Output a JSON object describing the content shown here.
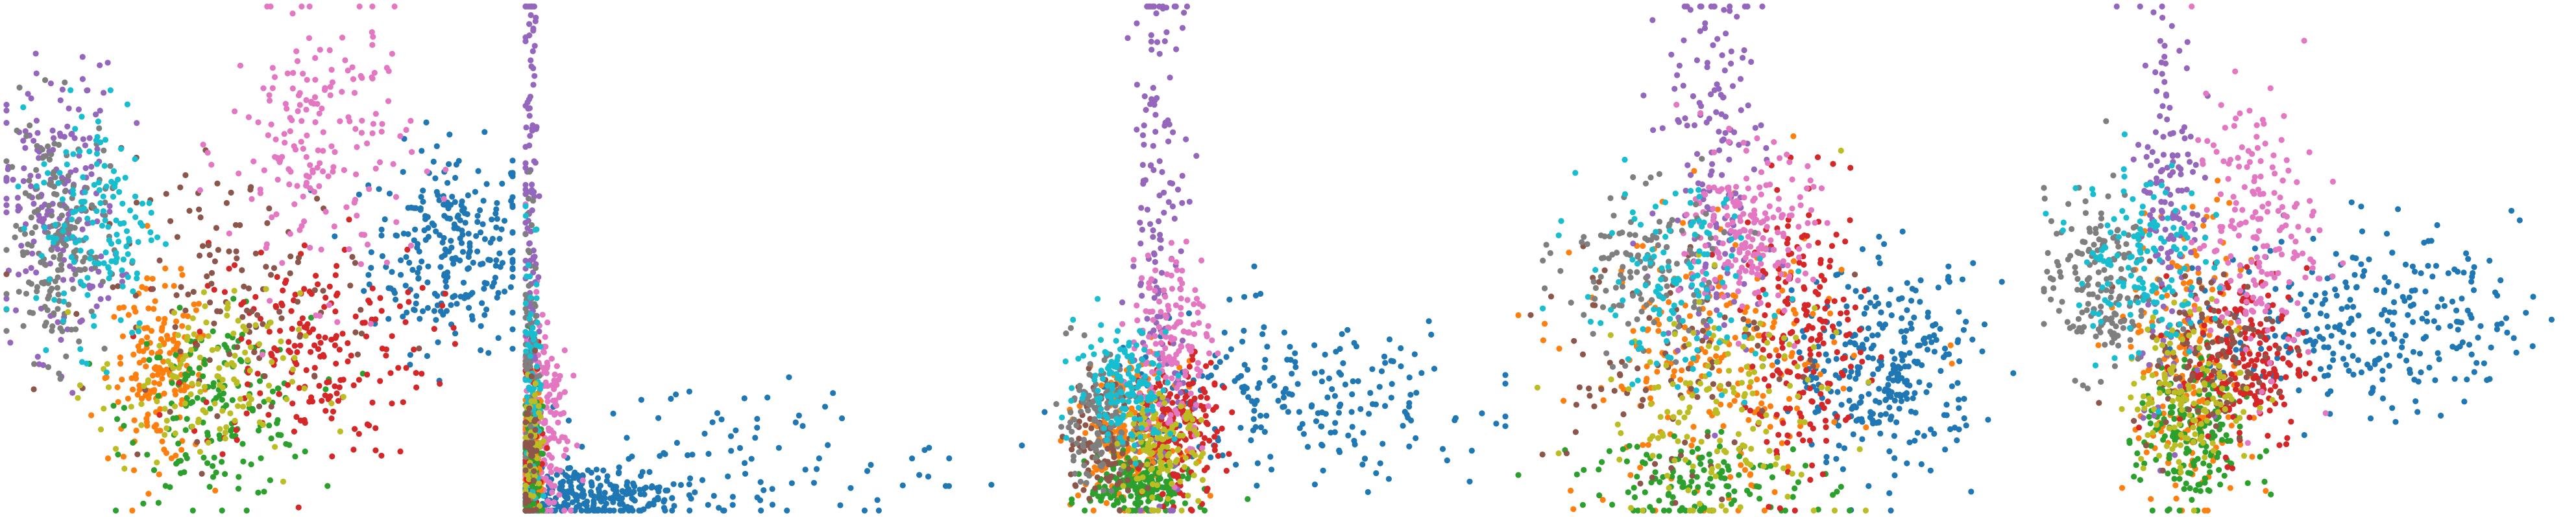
{
  "figure": {
    "type": "scatter-grid",
    "panel_count": 5
  },
  "colors": {
    "c0": "#1f77b4",
    "c1": "#ff7f0e",
    "c2": "#2ca02c",
    "c3": "#d62728",
    "c4": "#9467bd",
    "c5": "#8c564b",
    "c6": "#e377c2",
    "c7": "#7f7f7f",
    "c8": "#bcbd22",
    "c9": "#17becf"
  },
  "chart_data": [
    {
      "type": "scatter",
      "title": "",
      "xlabel": "",
      "ylabel": "",
      "axes_visible": false,
      "grid": false,
      "legend": "none",
      "xlim": [
        0,
        100
      ],
      "ylim": [
        0,
        100
      ],
      "clusters": [
        {
          "color": "c0",
          "cx": 88,
          "cy": 52,
          "sx": 8,
          "sy": 10,
          "n": 260
        },
        {
          "color": "c1",
          "cx": 30,
          "cy": 27,
          "sx": 5,
          "sy": 9,
          "n": 170
        },
        {
          "color": "c2",
          "cx": 42,
          "cy": 20,
          "sx": 9,
          "sy": 9,
          "n": 170
        },
        {
          "color": "c3",
          "cx": 60,
          "cy": 32,
          "sx": 12,
          "sy": 11,
          "n": 200
        },
        {
          "color": "c4",
          "cx": 10,
          "cy": 60,
          "sx": 6,
          "sy": 14,
          "n": 190
        },
        {
          "color": "c5",
          "cx": 45,
          "cy": 45,
          "sx": 14,
          "sy": 12,
          "n": 120
        },
        {
          "color": "c6",
          "cx": 62,
          "cy": 72,
          "sx": 9,
          "sy": 14,
          "n": 190
        },
        {
          "color": "c7",
          "cx": 10,
          "cy": 54,
          "sx": 5,
          "sy": 12,
          "n": 180
        },
        {
          "color": "c8",
          "cx": 38,
          "cy": 25,
          "sx": 10,
          "sy": 9,
          "n": 130
        },
        {
          "color": "c9",
          "cx": 18,
          "cy": 58,
          "sx": 6,
          "sy": 12,
          "n": 150
        }
      ]
    },
    {
      "type": "scatter",
      "title": "",
      "xlabel": "",
      "ylabel": "",
      "axes_visible": false,
      "grid": false,
      "legend": "none",
      "xlim": [
        0,
        100
      ],
      "ylim": [
        0,
        100
      ],
      "clusters": [
        {
          "color": "c0",
          "cx": 14,
          "cy": 3,
          "sx": 10,
          "sy": 3,
          "n": 260
        },
        {
          "color": "c0",
          "cx": 45,
          "cy": 10,
          "sx": 22,
          "sy": 8,
          "n": 90
        },
        {
          "color": "c6",
          "cx": 4,
          "cy": 18,
          "sx": 2.5,
          "sy": 12,
          "n": 150
        },
        {
          "color": "c4",
          "cx": 1,
          "cy": 60,
          "sx": 0.8,
          "sy": 30,
          "n": 120
        },
        {
          "color": "c1",
          "cx": 1.5,
          "cy": 10,
          "sx": 1.2,
          "sy": 8,
          "n": 80
        },
        {
          "color": "c3",
          "cx": 1.5,
          "cy": 15,
          "sx": 1.2,
          "sy": 10,
          "n": 70
        },
        {
          "color": "c2",
          "cx": 1.2,
          "cy": 12,
          "sx": 1,
          "sy": 10,
          "n": 60
        },
        {
          "color": "c7",
          "cx": 1,
          "cy": 30,
          "sx": 0.8,
          "sy": 18,
          "n": 70
        },
        {
          "color": "c9",
          "cx": 1.5,
          "cy": 25,
          "sx": 1,
          "sy": 16,
          "n": 70
        },
        {
          "color": "c8",
          "cx": 1.5,
          "cy": 12,
          "sx": 1,
          "sy": 8,
          "n": 50
        },
        {
          "color": "c5",
          "cx": 1.2,
          "cy": 10,
          "sx": 1,
          "sy": 8,
          "n": 40
        }
      ]
    },
    {
      "type": "scatter",
      "title": "",
      "xlabel": "",
      "ylabel": "",
      "axes_visible": false,
      "grid": false,
      "legend": "none",
      "xlim": [
        0,
        100
      ],
      "ylim": [
        0,
        100
      ],
      "clusters": [
        {
          "color": "c0",
          "cx": 58,
          "cy": 22,
          "sx": 20,
          "sy": 8,
          "n": 220
        },
        {
          "color": "c1",
          "cx": 25,
          "cy": 15,
          "sx": 5,
          "sy": 7,
          "n": 200
        },
        {
          "color": "c2",
          "cx": 27,
          "cy": 5,
          "sx": 5,
          "sy": 3,
          "n": 200
        },
        {
          "color": "c3",
          "cx": 35,
          "cy": 16,
          "sx": 4,
          "sy": 7,
          "n": 170
        },
        {
          "color": "c4",
          "cx": 31,
          "cy": 60,
          "sx": 3,
          "sy": 28,
          "n": 150
        },
        {
          "color": "c5",
          "cx": 20,
          "cy": 14,
          "sx": 4,
          "sy": 6,
          "n": 100
        },
        {
          "color": "c6",
          "cx": 33,
          "cy": 34,
          "sx": 4,
          "sy": 10,
          "n": 150
        },
        {
          "color": "c7",
          "cx": 18,
          "cy": 18,
          "sx": 4,
          "sy": 6,
          "n": 130
        },
        {
          "color": "c8",
          "cx": 31,
          "cy": 12,
          "sx": 4,
          "sy": 5,
          "n": 120
        },
        {
          "color": "c9",
          "cx": 24,
          "cy": 25,
          "sx": 5,
          "sy": 6,
          "n": 150
        }
      ]
    },
    {
      "type": "scatter",
      "title": "",
      "xlabel": "",
      "ylabel": "",
      "axes_visible": false,
      "grid": false,
      "legend": "none",
      "xlim": [
        0,
        100
      ],
      "ylim": [
        0,
        100
      ],
      "clusters": [
        {
          "color": "c0",
          "cx": 72,
          "cy": 28,
          "sx": 9,
          "sy": 10,
          "n": 300
        },
        {
          "color": "c1",
          "cx": 38,
          "cy": 28,
          "sx": 13,
          "sy": 14,
          "n": 230
        },
        {
          "color": "c2",
          "cx": 36,
          "cy": 6,
          "sx": 12,
          "sy": 4,
          "n": 130
        },
        {
          "color": "c3",
          "cx": 56,
          "cy": 34,
          "sx": 6,
          "sy": 14,
          "n": 190
        },
        {
          "color": "c4",
          "cx": 38,
          "cy": 72,
          "sx": 5,
          "sy": 20,
          "n": 160
        },
        {
          "color": "c5",
          "cx": 26,
          "cy": 30,
          "sx": 12,
          "sy": 14,
          "n": 90
        },
        {
          "color": "c6",
          "cx": 45,
          "cy": 55,
          "sx": 6,
          "sy": 8,
          "n": 200
        },
        {
          "color": "c7",
          "cx": 24,
          "cy": 48,
          "sx": 8,
          "sy": 8,
          "n": 130
        },
        {
          "color": "c8",
          "cx": 40,
          "cy": 20,
          "sx": 12,
          "sy": 12,
          "n": 150
        },
        {
          "color": "c9",
          "cx": 30,
          "cy": 44,
          "sx": 9,
          "sy": 10,
          "n": 130
        }
      ]
    },
    {
      "type": "scatter",
      "title": "",
      "xlabel": "",
      "ylabel": "",
      "axes_visible": false,
      "grid": false,
      "legend": "none",
      "xlim": [
        0,
        100
      ],
      "ylim": [
        0,
        100
      ],
      "clusters": [
        {
          "color": "c0",
          "cx": 62,
          "cy": 38,
          "sx": 14,
          "sy": 9,
          "n": 280
        },
        {
          "color": "c1",
          "cx": 28,
          "cy": 30,
          "sx": 6,
          "sy": 15,
          "n": 200
        },
        {
          "color": "c2",
          "cx": 28,
          "cy": 14,
          "sx": 5,
          "sy": 8,
          "n": 180
        },
        {
          "color": "c3",
          "cx": 38,
          "cy": 30,
          "sx": 6,
          "sy": 9,
          "n": 200
        },
        {
          "color": "c4",
          "cx": 24,
          "cy": 62,
          "sx": 3,
          "sy": 20,
          "n": 150
        },
        {
          "color": "c5",
          "cx": 30,
          "cy": 32,
          "sx": 7,
          "sy": 8,
          "n": 110
        },
        {
          "color": "c6",
          "cx": 40,
          "cy": 55,
          "sx": 6,
          "sy": 14,
          "n": 190
        },
        {
          "color": "c7",
          "cx": 10,
          "cy": 45,
          "sx": 5,
          "sy": 9,
          "n": 170
        },
        {
          "color": "c8",
          "cx": 28,
          "cy": 24,
          "sx": 6,
          "sy": 8,
          "n": 130
        },
        {
          "color": "c9",
          "cx": 18,
          "cy": 50,
          "sx": 6,
          "sy": 10,
          "n": 150
        }
      ]
    }
  ]
}
